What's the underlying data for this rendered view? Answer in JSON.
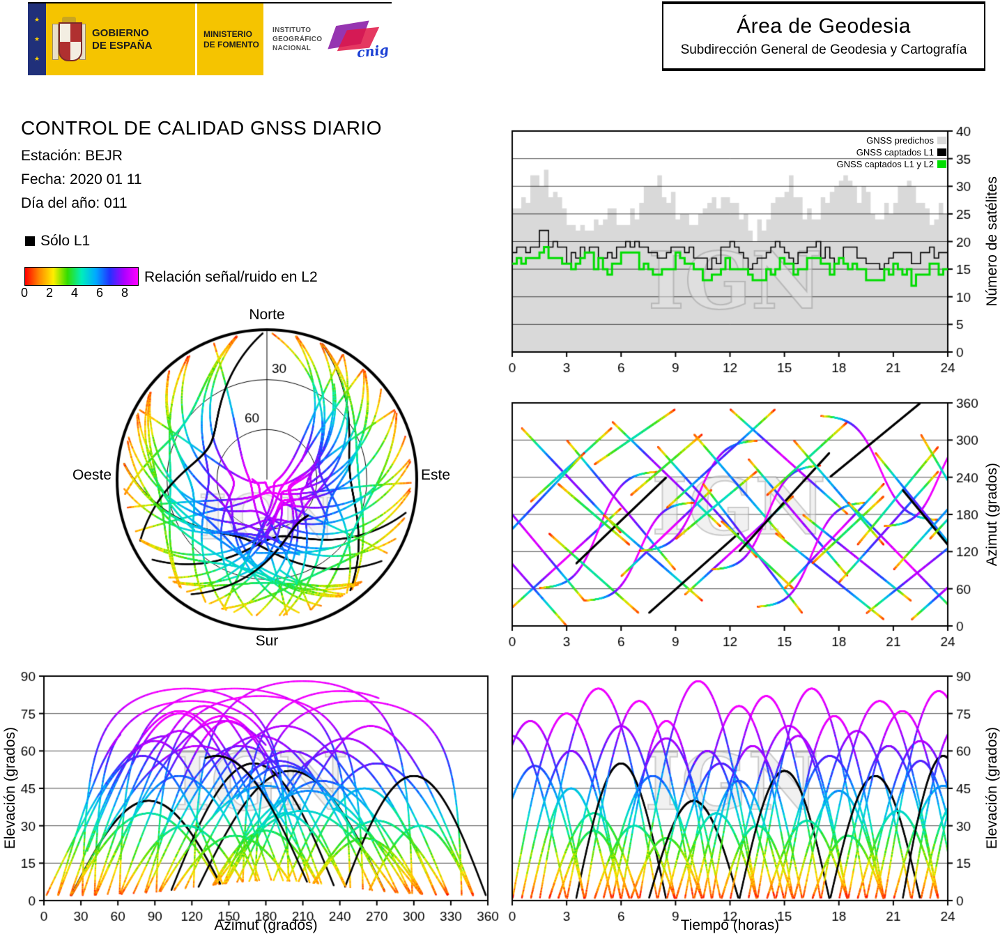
{
  "colors": {
    "gov_yellow": "#f5c400",
    "gov_blue": "#20307a",
    "cnig_purple": "#8b1fa8",
    "cnig_red": "#e01545",
    "cnig_blue": "#1a3fd4",
    "predicted_gray": "#d9d9d9",
    "captured_l1_black": "#000000",
    "captured_l1l2_green": "#00dd00",
    "watermark_gray": "#c8c8c8"
  },
  "colormap": [
    "#ff0000",
    "#ff8800",
    "#ffee00",
    "#33dd00",
    "#00eebb",
    "#00aaff",
    "#2233ff",
    "#aa00ff",
    "#ff00ff"
  ],
  "header": {
    "gov": {
      "line1": "GOBIERNO",
      "line2": "DE ESPAÑA"
    },
    "ministry": {
      "line1": "MINISTERIO",
      "line2": "DE FOMENTO"
    },
    "ign": {
      "line1": "INSTITUTO",
      "line2": "GEOGRÁFICO",
      "line3": "NACIONAL"
    },
    "cnig_label": "cnig",
    "area_title": "Área de Geodesia",
    "area_subtitle": "Subdirección General de Geodesia y Cartografía"
  },
  "info": {
    "title": "CONTROL DE CALIDAD GNSS DIARIO",
    "station": "Estación: BEJR",
    "date": "Fecha: 2020 01 11",
    "doy": "Día del año: 011"
  },
  "legend": {
    "l1_only": "Sólo L1",
    "colorbar_label": "Relación señal/ruido en L2",
    "colorbar_ticks": [
      0,
      2,
      4,
      6,
      8
    ],
    "colorbar_max": 9
  },
  "chart_data": [
    {
      "id": "satellite_count",
      "type": "area",
      "ylabel": "Número de satélites",
      "xlabel": "",
      "xlim": [
        0,
        24
      ],
      "ylim": [
        0,
        40
      ],
      "x_ticks": [
        0,
        3,
        6,
        9,
        12,
        15,
        18,
        21,
        24
      ],
      "y_ticks": [
        0,
        5,
        10,
        15,
        20,
        25,
        30,
        35,
        40
      ],
      "x_step_hours": 0.5,
      "legend_position": "top-right",
      "watermark": "IGN",
      "series": [
        {
          "name": "GNSS predichos",
          "color": "#d9d9d9",
          "style": "filled-steps",
          "values": [
            27,
            29,
            31,
            32,
            30,
            27,
            24,
            22,
            22,
            23,
            25,
            25,
            24,
            26,
            28,
            29,
            30,
            28,
            26,
            24,
            24,
            25,
            27,
            28,
            27,
            25,
            22,
            23,
            26,
            28,
            30,
            29,
            26,
            25,
            27,
            30,
            32,
            31,
            29,
            27,
            25,
            26,
            28,
            30,
            29,
            26,
            24,
            25,
            26
          ]
        },
        {
          "name": "GNSS captados L1",
          "color": "#000000",
          "style": "steps",
          "values": [
            19,
            18,
            20,
            21,
            19,
            18,
            17,
            18,
            19,
            18,
            17,
            18,
            19,
            20,
            19,
            18,
            17,
            18,
            19,
            18,
            17,
            16,
            17,
            18,
            19,
            18,
            16,
            17,
            18,
            19,
            18,
            17,
            18,
            19,
            18,
            17,
            18,
            19,
            18,
            17,
            16,
            17,
            18,
            17,
            16,
            17,
            18,
            17,
            17
          ]
        },
        {
          "name": "GNSS captados L1 y L2",
          "color": "#00dd00",
          "style": "steps",
          "values": [
            17,
            16,
            17,
            18,
            17,
            16,
            15,
            16,
            17,
            16,
            15,
            16,
            17,
            17,
            16,
            15,
            15,
            16,
            17,
            16,
            15,
            14,
            15,
            16,
            16,
            15,
            14,
            14,
            15,
            16,
            16,
            15,
            16,
            17,
            16,
            15,
            16,
            16,
            15,
            14,
            14,
            15,
            15,
            14,
            13,
            14,
            15,
            15,
            14
          ]
        }
      ]
    },
    {
      "id": "azimuth_vs_time",
      "type": "scatter",
      "ylabel": "Azimut (grados)",
      "xlabel": "",
      "xlim": [
        0,
        24
      ],
      "ylim": [
        0,
        360
      ],
      "x_ticks": [
        0,
        3,
        6,
        9,
        12,
        15,
        18,
        21,
        24
      ],
      "y_ticks": [
        0,
        60,
        120,
        180,
        240,
        300,
        360
      ],
      "watermark": "IGN",
      "points_source": "satellite_passes"
    },
    {
      "id": "elevation_vs_time",
      "type": "scatter",
      "ylabel": "Elevación (grados)",
      "xlabel": "Tiempo (horas)",
      "xlim": [
        0,
        24
      ],
      "ylim": [
        0,
        90
      ],
      "x_ticks": [
        0,
        3,
        6,
        9,
        12,
        15,
        18,
        21,
        24
      ],
      "y_ticks": [
        0,
        15,
        30,
        45,
        60,
        75,
        90
      ],
      "watermark": "IGN",
      "points_source": "satellite_passes"
    },
    {
      "id": "elevation_vs_azimuth",
      "type": "scatter",
      "ylabel": "Elevación (grados)",
      "xlabel": "Azimut (grados)",
      "xlim": [
        0,
        360
      ],
      "ylim": [
        0,
        90
      ],
      "x_ticks": [
        0,
        30,
        60,
        90,
        120,
        150,
        180,
        210,
        240,
        270,
        300,
        330,
        360
      ],
      "y_ticks": [
        0,
        15,
        30,
        45,
        60,
        75,
        90
      ],
      "watermark": "IGN",
      "points_source": "satellite_passes"
    },
    {
      "id": "skyplot",
      "type": "scatter_polar",
      "cardinal": {
        "north": "Norte",
        "south": "Sur",
        "east": "Este",
        "west": "Oeste"
      },
      "rings": [
        30,
        60
      ],
      "watermark": "IGN",
      "points_source": "satellite_passes"
    }
  ],
  "passes_format": "[start_hour, duration_hours, azimuth_start_deg, azimuth_end_deg, max_elevation_deg, L2_snr_quality_0to1, L1_only_flag]",
  "satellite_passes": [
    [
      0.0,
      6.0,
      30,
      190,
      75,
      1.0,
      0
    ],
    [
      0.5,
      5.5,
      320,
      150,
      60,
      0.85,
      0
    ],
    [
      1.0,
      4.5,
      200,
      320,
      45,
      0.6,
      0
    ],
    [
      1.5,
      6.5,
      60,
      250,
      85,
      1.0,
      0
    ],
    [
      2.0,
      5.0,
      150,
      20,
      35,
      0.5,
      0
    ],
    [
      2.5,
      4.0,
      230,
      130,
      28,
      0.45,
      0
    ],
    [
      3.0,
      6.0,
      300,
      90,
      70,
      0.9,
      0
    ],
    [
      3.5,
      5.0,
      100,
      240,
      55,
      0.75,
      1
    ],
    [
      4.0,
      6.0,
      40,
      200,
      80,
      1.0,
      0
    ],
    [
      4.5,
      4.5,
      260,
      350,
      30,
      0.5,
      0
    ],
    [
      5.0,
      5.5,
      180,
      40,
      50,
      0.7,
      0
    ],
    [
      5.5,
      6.0,
      330,
      160,
      65,
      0.9,
      0
    ],
    [
      6.0,
      5.0,
      80,
      220,
      72,
      1.0,
      0
    ],
    [
      6.5,
      4.0,
      210,
      310,
      25,
      0.4,
      0
    ],
    [
      7.0,
      6.5,
      120,
      300,
      88,
      1.0,
      0
    ],
    [
      7.5,
      5.0,
      20,
      150,
      40,
      0.6,
      1
    ],
    [
      8.0,
      5.5,
      290,
      110,
      60,
      0.85,
      0
    ],
    [
      8.5,
      6.0,
      190,
      350,
      55,
      0.8,
      0
    ],
    [
      9.0,
      4.5,
      140,
      250,
      35,
      0.55,
      0
    ],
    [
      9.5,
      6.0,
      50,
      210,
      78,
      1.0,
      0
    ],
    [
      10.0,
      5.0,
      310,
      140,
      48,
      0.7,
      0
    ],
    [
      10.5,
      5.5,
      230,
      20,
      62,
      0.9,
      0
    ],
    [
      11.0,
      6.0,
      90,
      260,
      82,
      1.0,
      0
    ],
    [
      11.5,
      4.0,
      170,
      60,
      30,
      0.5,
      0
    ],
    [
      12.0,
      6.5,
      350,
      180,
      70,
      0.95,
      0
    ],
    [
      12.5,
      5.0,
      120,
      280,
      52,
      0.75,
      1
    ],
    [
      13.0,
      5.5,
      270,
      80,
      66,
      0.9,
      0
    ],
    [
      13.5,
      6.0,
      30,
      200,
      85,
      1.0,
      0
    ],
    [
      14.0,
      4.5,
      210,
      330,
      32,
      0.5,
      0
    ],
    [
      14.5,
      6.0,
      150,
      10,
      58,
      0.8,
      0
    ],
    [
      15.0,
      5.5,
      60,
      230,
      74,
      1.0,
      0
    ],
    [
      15.5,
      5.0,
      300,
      130,
      44,
      0.65,
      0
    ],
    [
      16.0,
      6.0,
      180,
      40,
      68,
      0.9,
      0
    ],
    [
      16.5,
      4.0,
      100,
      210,
      26,
      0.45,
      0
    ],
    [
      17.0,
      6.5,
      340,
      170,
      80,
      1.0,
      0
    ],
    [
      17.5,
      5.0,
      240,
      360,
      50,
      0.7,
      1
    ],
    [
      18.0,
      5.5,
      70,
      250,
      62,
      0.85,
      0
    ],
    [
      18.5,
      6.0,
      200,
      20,
      76,
      1.0,
      0
    ],
    [
      19.0,
      4.5,
      130,
      290,
      36,
      0.55,
      0
    ],
    [
      19.5,
      6.0,
      20,
      160,
      64,
      0.9,
      0
    ],
    [
      20.0,
      5.0,
      280,
      100,
      56,
      0.8,
      0
    ],
    [
      20.5,
      6.0,
      160,
      320,
      84,
      1.0,
      0
    ],
    [
      21.0,
      5.5,
      90,
      270,
      46,
      0.65,
      0
    ],
    [
      21.5,
      4.5,
      220,
      60,
      58,
      0.8,
      1
    ],
    [
      22.0,
      5.0,
      10,
      140,
      70,
      0.95,
      0
    ],
    [
      22.5,
      4.0,
      310,
      110,
      40,
      0.6,
      0
    ],
    [
      -2.0,
      6.0,
      250,
      40,
      72,
      0.95,
      0
    ],
    [
      -1.5,
      5.5,
      110,
      280,
      54,
      0.75,
      0
    ],
    [
      -3.0,
      6.0,
      200,
      0,
      66,
      0.9,
      0
    ],
    [
      23.0,
      5.0,
      140,
      300,
      60,
      0.85,
      0
    ]
  ]
}
